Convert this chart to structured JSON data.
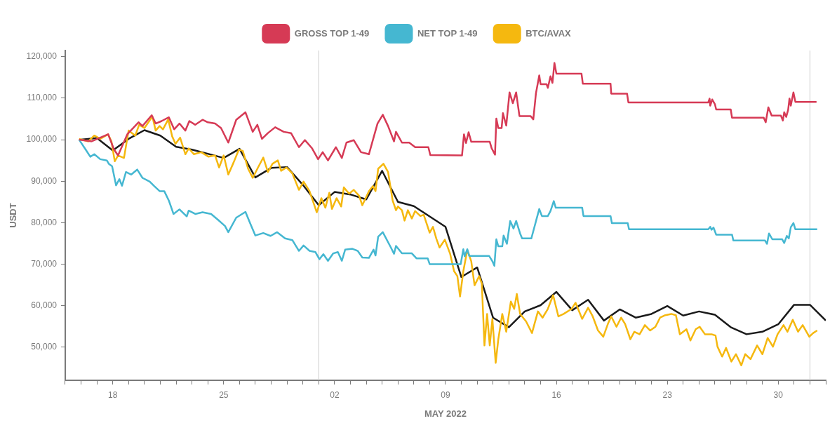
{
  "chart_data": {
    "type": "line",
    "xlabel": "MAY 2022",
    "ylabel": "USDT",
    "xlim": [
      "2022-04-15",
      "2022-06-02"
    ],
    "xticks": [
      {
        "value": "2022-04-15",
        "label": null
      },
      {
        "value": "2022-04-16",
        "label": null
      },
      {
        "value": "2022-04-17",
        "label": null
      },
      {
        "value": "2022-04-18",
        "label": "18"
      },
      {
        "value": "2022-04-19",
        "label": null
      },
      {
        "value": "2022-04-20",
        "label": null
      },
      {
        "value": "2022-04-21",
        "label": null
      },
      {
        "value": "2022-04-22",
        "label": null
      },
      {
        "value": "2022-04-23",
        "label": null
      },
      {
        "value": "2022-04-24",
        "label": null
      },
      {
        "value": "2022-04-25",
        "label": "25"
      },
      {
        "value": "2022-04-26",
        "label": null
      },
      {
        "value": "2022-04-27",
        "label": null
      },
      {
        "value": "2022-04-28",
        "label": null
      },
      {
        "value": "2022-04-29",
        "label": null
      },
      {
        "value": "2022-04-30",
        "label": null
      },
      {
        "value": "2022-05-01",
        "label": null
      },
      {
        "value": "2022-05-02",
        "label": "02"
      },
      {
        "value": "2022-05-03",
        "label": null
      },
      {
        "value": "2022-05-04",
        "label": null
      },
      {
        "value": "2022-05-05",
        "label": null
      },
      {
        "value": "2022-05-06",
        "label": null
      },
      {
        "value": "2022-05-07",
        "label": null
      },
      {
        "value": "2022-05-08",
        "label": null
      },
      {
        "value": "2022-05-09",
        "label": "09"
      },
      {
        "value": "2022-05-10",
        "label": null
      },
      {
        "value": "2022-05-11",
        "label": null
      },
      {
        "value": "2022-05-12",
        "label": null
      },
      {
        "value": "2022-05-13",
        "label": null
      },
      {
        "value": "2022-05-14",
        "label": null
      },
      {
        "value": "2022-05-15",
        "label": null
      },
      {
        "value": "2022-05-16",
        "label": "16"
      },
      {
        "value": "2022-05-17",
        "label": null
      },
      {
        "value": "2022-05-18",
        "label": null
      },
      {
        "value": "2022-05-19",
        "label": null
      },
      {
        "value": "2022-05-20",
        "label": null
      },
      {
        "value": "2022-05-21",
        "label": null
      },
      {
        "value": "2022-05-22",
        "label": null
      },
      {
        "value": "2022-05-23",
        "label": "23"
      },
      {
        "value": "2022-05-24",
        "label": null
      },
      {
        "value": "2022-05-25",
        "label": null
      },
      {
        "value": "2022-05-26",
        "label": null
      },
      {
        "value": "2022-05-27",
        "label": null
      },
      {
        "value": "2022-05-28",
        "label": null
      },
      {
        "value": "2022-05-29",
        "label": null
      },
      {
        "value": "2022-05-30",
        "label": "30"
      },
      {
        "value": "2022-05-31",
        "label": null
      },
      {
        "value": "2022-06-01",
        "label": null
      },
      {
        "value": "2022-06-02",
        "label": null
      }
    ],
    "ylim": [
      42000,
      121500
    ],
    "yticks": [
      {
        "value": 50000,
        "label": "50,000"
      },
      {
        "value": 60000,
        "label": "60,000"
      },
      {
        "value": 70000,
        "label": "70,000"
      },
      {
        "value": 80000,
        "label": "80,000"
      },
      {
        "value": 90000,
        "label": "90,000"
      },
      {
        "value": 100000,
        "label": "100,000"
      },
      {
        "value": 110000,
        "label": "110,000"
      },
      {
        "value": 120000,
        "label": "120,000"
      }
    ],
    "legend": "top",
    "marker": "none",
    "line_style": "solid",
    "ref_lines": [
      {
        "axis": "x",
        "value": "2022-05-01",
        "color": "#cccccc"
      },
      {
        "axis": "x",
        "value": "2022-06-01",
        "color": "#cccccc"
      }
    ],
    "series": [
      {
        "name": "GROSS TOP 1-49",
        "color": "#d63a55",
        "x": [
          "2022-04-15T21:00",
          "2022-04-16T16:00",
          "2022-04-17T17:00",
          "2022-04-18T02:00",
          "2022-04-18T08:00",
          "2022-04-18T22:00",
          "2022-04-19T15:00",
          "2022-04-19T21:00",
          "2022-04-20T11:00",
          "2022-04-20T17:00",
          "2022-04-21T02:00",
          "2022-04-21T13:00",
          "2022-04-21T21:00",
          "2022-04-22T05:00",
          "2022-04-22T14:00",
          "2022-04-22T20:00",
          "2022-04-23T05:00",
          "2022-04-23T16:00",
          "2022-04-24T00:00",
          "2022-04-24T11:00",
          "2022-04-24T20:00",
          "2022-04-25T07:00",
          "2022-04-25T19:00",
          "2022-04-26T09:00",
          "2022-04-26T20:00",
          "2022-04-27T03:00",
          "2022-04-27T10:00",
          "2022-04-27T19:00",
          "2022-04-28T06:00",
          "2022-04-28T19:00",
          "2022-04-29T06:00",
          "2022-04-29T18:00",
          "2022-04-30T03:00",
          "2022-04-30T14:00",
          "2022-04-30T23:00",
          "2022-05-01T06:00",
          "2022-05-01T14:00",
          "2022-05-02T02:00",
          "2022-05-02T11:00",
          "2022-05-02T18:00",
          "2022-05-03T05:00",
          "2022-05-03T16:00",
          "2022-05-04T04:00",
          "2022-05-04T10:00",
          "2022-05-04T17:00",
          "2022-05-05T01:00",
          "2022-05-05T09:00",
          "2022-05-05T18:00",
          "2022-05-05T21:00",
          "2022-05-06T06:00",
          "2022-05-06T17:00",
          "2022-05-07T02:00",
          "2022-05-07T22:00",
          "2022-05-08T01:00",
          "2022-05-10T01:00",
          "2022-05-10T04:00",
          "2022-05-10T07:00",
          "2022-05-10T11:00",
          "2022-05-10T15:00",
          "2022-05-11T19:00",
          "2022-05-11T22:00",
          "2022-05-12T03:00",
          "2022-05-12T05:00",
          "2022-05-12T08:00",
          "2022-05-12T13:00",
          "2022-05-12T15:00",
          "2022-05-12T20:00",
          "2022-05-13T01:00",
          "2022-05-13T06:00",
          "2022-05-13T11:00",
          "2022-05-13T16:00",
          "2022-05-14T09:00",
          "2022-05-14T13:00",
          "2022-05-14T17:00",
          "2022-05-14T22:00",
          "2022-05-15T00:00",
          "2022-05-15T09:00",
          "2022-05-15T11:00",
          "2022-05-15T15:00",
          "2022-05-15T18:00",
          "2022-05-15T21:00",
          "2022-05-16T00:00",
          "2022-05-17T14:00",
          "2022-05-17T16:00",
          "2022-05-19T10:00",
          "2022-05-19T11:00",
          "2022-05-20T11:00",
          "2022-05-20T13:00",
          "2022-05-25T14:00",
          "2022-05-25T16:00",
          "2022-05-25T17:00",
          "2022-05-25T20:00",
          "2022-05-26T00:00",
          "2022-05-26T02:00",
          "2022-05-27T00:00",
          "2022-05-27T02:00",
          "2022-05-29T02:00",
          "2022-05-29T05:00",
          "2022-05-29T09:00",
          "2022-05-29T14:00",
          "2022-05-30T04:00",
          "2022-05-30T07:00",
          "2022-05-30T09:00",
          "2022-05-30T12:00",
          "2022-05-30T15:00",
          "2022-05-30T17:00",
          "2022-05-30T19:00",
          "2022-05-30T23:00",
          "2022-05-31T02:00",
          "2022-06-01T10:00"
        ],
        "values": [
          100000,
          99600,
          101300,
          97600,
          96200,
          101300,
          104200,
          103300,
          105900,
          103900,
          104500,
          105400,
          102500,
          103900,
          102200,
          104500,
          103600,
          104800,
          104200,
          103900,
          102800,
          99300,
          104800,
          106600,
          101900,
          103600,
          100200,
          101600,
          103000,
          101900,
          101600,
          98200,
          99900,
          97900,
          95300,
          97000,
          95000,
          98200,
          95600,
          99300,
          99900,
          97000,
          96500,
          99900,
          103900,
          106000,
          103300,
          99600,
          101900,
          99300,
          99300,
          98200,
          98200,
          96300,
          96200,
          101300,
          99200,
          101800,
          99500,
          99500,
          97900,
          96400,
          105100,
          102800,
          102800,
          106400,
          103400,
          111400,
          108800,
          111400,
          105700,
          105700,
          104900,
          111200,
          115500,
          113400,
          113400,
          112500,
          115300,
          113700,
          118500,
          115900,
          115900,
          113500,
          113500,
          111100,
          111100,
          109000,
          109000,
          109900,
          108200,
          109700,
          108600,
          107300,
          107300,
          105300,
          105300,
          104200,
          107800,
          105800,
          105800,
          104600,
          106600,
          105500,
          107200,
          109900,
          108200,
          111400,
          109100,
          109100
        ]
      },
      {
        "name": "NET TOP 1-49",
        "color": "#45b7d1",
        "x": [
          "2022-04-15T21:00",
          "2022-04-16T07:00",
          "2022-04-16T14:00",
          "2022-04-16T20:00",
          "2022-04-17T05:00",
          "2022-04-17T15:00",
          "2022-04-17T18:00",
          "2022-04-17T23:00",
          "2022-04-18T05:00",
          "2022-04-18T10:00",
          "2022-04-18T14:00",
          "2022-04-18T20:00",
          "2022-04-19T04:00",
          "2022-04-19T13:00",
          "2022-04-19T21:00",
          "2022-04-20T08:00",
          "2022-04-20T15:00",
          "2022-04-20T23:00",
          "2022-04-21T06:00",
          "2022-04-21T13:00",
          "2022-04-21T20:00",
          "2022-04-22T05:00",
          "2022-04-22T16:00",
          "2022-04-22T19:00",
          "2022-04-23T05:00",
          "2022-04-23T16:00",
          "2022-04-24T05:00",
          "2022-04-24T16:00",
          "2022-04-25T02:00",
          "2022-04-25T07:00",
          "2022-04-25T19:00",
          "2022-04-26T09:00",
          "2022-04-26T17:00",
          "2022-04-27T00:00",
          "2022-04-27T12:00",
          "2022-04-27T23:00",
          "2022-04-28T09:00",
          "2022-04-28T21:00",
          "2022-04-29T08:00",
          "2022-04-29T18:00",
          "2022-04-30T01:00",
          "2022-04-30T10:00",
          "2022-04-30T19:00",
          "2022-05-01T01:00",
          "2022-05-01T07:00",
          "2022-05-01T14:00",
          "2022-05-01T22:00",
          "2022-05-02T05:00",
          "2022-05-02T11:00",
          "2022-05-02T16:00",
          "2022-05-03T03:00",
          "2022-05-03T11:00",
          "2022-05-03T18:00",
          "2022-05-04T04:00",
          "2022-05-04T11:00",
          "2022-05-04T14:00",
          "2022-05-04T18:00",
          "2022-05-05T01:00",
          "2022-05-05T13:00",
          "2022-05-05T18:00",
          "2022-05-05T21:00",
          "2022-05-06T06:00",
          "2022-05-06T21:00",
          "2022-05-07T04:00",
          "2022-05-07T21:00",
          "2022-05-08T00:00",
          "2022-05-09T23:00",
          "2022-05-10T03:00",
          "2022-05-10T05:00",
          "2022-05-10T09:00",
          "2022-05-10T12:00",
          "2022-05-11T18:00",
          "2022-05-11T23:00",
          "2022-05-12T02:00",
          "2022-05-12T05:00",
          "2022-05-12T08:00",
          "2022-05-12T14:00",
          "2022-05-12T16:00",
          "2022-05-12T21:00",
          "2022-05-13T02:00",
          "2022-05-13T07:00",
          "2022-05-13T11:00",
          "2022-05-13T17:00",
          "2022-05-13T20:00",
          "2022-05-14T10:00",
          "2022-05-14T22:00",
          "2022-05-15T02:00",
          "2022-05-15T11:00",
          "2022-05-15T15:00",
          "2022-05-15T20:00",
          "2022-05-15T23:00",
          "2022-05-17T15:00",
          "2022-05-17T17:00",
          "2022-05-19T10:00",
          "2022-05-19T12:00",
          "2022-05-20T12:00",
          "2022-05-20T14:00",
          "2022-05-25T14:00",
          "2022-05-25T17:00",
          "2022-05-25T19:00",
          "2022-05-25T22:00",
          "2022-05-26T02:00",
          "2022-05-27T02:00",
          "2022-05-27T04:00",
          "2022-05-29T04:00",
          "2022-05-29T07:00",
          "2022-05-29T10:00",
          "2022-05-29T15:00",
          "2022-05-30T06:00",
          "2022-05-30T09:00",
          "2022-05-30T13:00",
          "2022-05-30T16:00",
          "2022-05-30T19:00",
          "2022-05-30T23:00",
          "2022-05-31T02:00",
          "2022-06-01T11:00"
        ],
        "values": [
          100000,
          97600,
          95900,
          96500,
          95300,
          95000,
          94200,
          93600,
          89000,
          90500,
          88900,
          92200,
          91600,
          92800,
          90800,
          89900,
          88800,
          87600,
          87600,
          85300,
          82100,
          83200,
          81500,
          82900,
          82100,
          82500,
          82100,
          80600,
          79200,
          77700,
          81200,
          82600,
          79500,
          76900,
          77500,
          76800,
          77700,
          76200,
          75800,
          73200,
          74500,
          73200,
          72900,
          71200,
          72400,
          70800,
          72600,
          72900,
          70800,
          73500,
          73700,
          73200,
          71600,
          71500,
          73500,
          72100,
          76600,
          77700,
          74100,
          72500,
          74400,
          72600,
          72600,
          71400,
          71400,
          70000,
          70000,
          73600,
          71900,
          73600,
          72000,
          72000,
          70700,
          69600,
          76000,
          74300,
          74300,
          76900,
          74900,
          80400,
          78600,
          80400,
          77400,
          76200,
          76200,
          83300,
          81600,
          81600,
          82800,
          85200,
          83600,
          83600,
          81600,
          81600,
          79900,
          79900,
          78400,
          78400,
          79000,
          78300,
          78800,
          77100,
          77100,
          75700,
          75700,
          74900,
          77400,
          76000,
          76000,
          75100,
          76800,
          76200,
          78900,
          79900,
          78400,
          78400
        ]
      },
      {
        "name": "BTC/AVAX",
        "color": "#f5b80f",
        "x": [
          "2022-04-15T21:00",
          "2022-04-16T11:00",
          "2022-04-16T20:00",
          "2022-04-17T05:00",
          "2022-04-17T17:00",
          "2022-04-17T22:00",
          "2022-04-18T03:00",
          "2022-04-18T08:00",
          "2022-04-18T17:00",
          "2022-04-19T00:00",
          "2022-04-19T10:00",
          "2022-04-19T16:00",
          "2022-04-20T00:00",
          "2022-04-20T06:00",
          "2022-04-20T12:00",
          "2022-04-20T17:00",
          "2022-04-20T23:00",
          "2022-04-21T04:00",
          "2022-04-21T12:00",
          "2022-04-21T18:00",
          "2022-04-21T23:00",
          "2022-04-22T06:00",
          "2022-04-22T14:00",
          "2022-04-22T19:00",
          "2022-04-23T03:00",
          "2022-04-23T14:00",
          "2022-04-24T01:00",
          "2022-04-24T11:00",
          "2022-04-24T17:00",
          "2022-04-25T00:00",
          "2022-04-25T07:00",
          "2022-04-25T15:00",
          "2022-04-25T23:00",
          "2022-04-26T05:00",
          "2022-04-26T13:00",
          "2022-04-26T20:00",
          "2022-04-27T04:00",
          "2022-04-27T12:00",
          "2022-04-27T19:00",
          "2022-04-28T02:00",
          "2022-04-28T10:00",
          "2022-04-28T15:00",
          "2022-04-28T23:00",
          "2022-04-29T08:00",
          "2022-04-29T18:00",
          "2022-04-30T01:00",
          "2022-04-30T10:00",
          "2022-04-30T21:00",
          "2022-05-01T04:00",
          "2022-05-01T10:00",
          "2022-05-01T16:00",
          "2022-05-01T20:00",
          "2022-05-02T03:00",
          "2022-05-02T10:00",
          "2022-05-02T14:00",
          "2022-05-02T22:00",
          "2022-05-03T05:00",
          "2022-05-03T13:00",
          "2022-05-03T18:00",
          "2022-05-04T04:00",
          "2022-05-04T10:00",
          "2022-05-04T14:00",
          "2022-05-04T18:00",
          "2022-05-05T02:00",
          "2022-05-05T09:00",
          "2022-05-05T16:00",
          "2022-05-05T21:00",
          "2022-05-06T00:00",
          "2022-05-06T06:00",
          "2022-05-06T10:00",
          "2022-05-06T15:00",
          "2022-05-06T21:00",
          "2022-05-07T02:00",
          "2022-05-07T10:00",
          "2022-05-07T15:00",
          "2022-05-08T00:00",
          "2022-05-08T05:00",
          "2022-05-08T10:00",
          "2022-05-08T15:00",
          "2022-05-08T23:00",
          "2022-05-09T07:00",
          "2022-05-09T13:00",
          "2022-05-09T18:00",
          "2022-05-09T22:00",
          "2022-05-10T03:00",
          "2022-05-10T09:00",
          "2022-05-10T15:00",
          "2022-05-10T20:00",
          "2022-05-11T03:00",
          "2022-05-11T07:00",
          "2022-05-11T11:00",
          "2022-05-11T15:00",
          "2022-05-11T19:00",
          "2022-05-11T23:00",
          "2022-05-12T04:00",
          "2022-05-12T08:00",
          "2022-05-12T14:00",
          "2022-05-12T20:00",
          "2022-05-13T03:00",
          "2022-05-13T08:00",
          "2022-05-13T12:00",
          "2022-05-13T17:00",
          "2022-05-14T02:00",
          "2022-05-14T11:00",
          "2022-05-14T20:00",
          "2022-05-15T03:00",
          "2022-05-15T11:00",
          "2022-05-15T19:00",
          "2022-05-16T03:00",
          "2022-05-16T11:00",
          "2022-05-16T23:00",
          "2022-05-17T05:00",
          "2022-05-17T15:00",
          "2022-05-18T00:00",
          "2022-05-18T07:00",
          "2022-05-18T15:00",
          "2022-05-18T23:00",
          "2022-05-19T06:00",
          "2022-05-19T11:00",
          "2022-05-19T19:00",
          "2022-05-20T02:00",
          "2022-05-20T08:00",
          "2022-05-20T16:00",
          "2022-05-20T22:00",
          "2022-05-21T06:00",
          "2022-05-21T14:00",
          "2022-05-21T22:00",
          "2022-05-22T06:00",
          "2022-05-22T13:00",
          "2022-05-22T21:00",
          "2022-05-23T06:00",
          "2022-05-23T13:00",
          "2022-05-23T19:00",
          "2022-05-24T05:00",
          "2022-05-24T11:00",
          "2022-05-24T19:00",
          "2022-05-25T01:00",
          "2022-05-25T09:00",
          "2022-05-25T19:00",
          "2022-05-26T01:00",
          "2022-05-26T04:00",
          "2022-05-26T11:00",
          "2022-05-26T17:00",
          "2022-05-27T01:00",
          "2022-05-27T08:00",
          "2022-05-27T16:00",
          "2022-05-27T22:00",
          "2022-05-28T06:00",
          "2022-05-28T16:00",
          "2022-05-29T00:00",
          "2022-05-29T08:00",
          "2022-05-29T16:00",
          "2022-05-29T23:00",
          "2022-05-30T08:00",
          "2022-05-30T14:00",
          "2022-05-30T22:00",
          "2022-05-31T06:00",
          "2022-05-31T13:00",
          "2022-05-31T23:00",
          "2022-06-01T05:00",
          "2022-06-01T11:00"
        ],
        "values": [
          100200,
          99600,
          101000,
          100200,
          101300,
          99600,
          94800,
          96200,
          95600,
          102200,
          101000,
          103600,
          102800,
          104200,
          105600,
          102200,
          103300,
          102500,
          104900,
          100800,
          99000,
          100500,
          96500,
          97900,
          96500,
          97000,
          95900,
          96200,
          93300,
          96200,
          91600,
          94500,
          97600,
          97300,
          93000,
          90800,
          93300,
          95700,
          92200,
          94200,
          95000,
          92500,
          93300,
          91900,
          87900,
          89900,
          87600,
          82500,
          85900,
          83600,
          87200,
          83300,
          85900,
          83900,
          88500,
          87000,
          87900,
          86500,
          84200,
          87600,
          88800,
          87600,
          93000,
          94200,
          92200,
          85300,
          83000,
          83900,
          83000,
          80500,
          83000,
          81000,
          82800,
          81600,
          81900,
          77600,
          79000,
          76200,
          74000,
          75900,
          72500,
          68300,
          67100,
          62200,
          68300,
          73400,
          70700,
          64900,
          67100,
          65300,
          50400,
          58000,
          50400,
          56800,
          46200,
          51900,
          58000,
          53700,
          61000,
          59200,
          62800,
          58000,
          56200,
          53400,
          58600,
          57100,
          59200,
          62500,
          57400,
          58000,
          59200,
          60700,
          56800,
          59500,
          57400,
          54000,
          52500,
          55600,
          57400,
          54900,
          57100,
          55600,
          51900,
          53700,
          53100,
          55300,
          54000,
          54900,
          57100,
          57700,
          58000,
          57700,
          53100,
          54300,
          51600,
          54300,
          54900,
          53100,
          53100,
          52800,
          50100,
          47700,
          49800,
          46500,
          48300,
          45600,
          48300,
          47100,
          50400,
          48300,
          52200,
          50100,
          53100,
          55300,
          53700,
          56600,
          53700,
          55300,
          52500,
          53400,
          54000
        ]
      },
      {
        "color": "#1a1a1a",
        "x": [
          "2022-04-16",
          "2022-04-17",
          "2022-04-18",
          "2022-04-19",
          "2022-04-20",
          "2022-04-21",
          "2022-04-22",
          "2022-04-23",
          "2022-04-25",
          "2022-04-26",
          "2022-04-27",
          "2022-04-28",
          "2022-04-29",
          "2022-04-30",
          "2022-05-01",
          "2022-05-02",
          "2022-05-03",
          "2022-05-04",
          "2022-05-05",
          "2022-05-06",
          "2022-05-07",
          "2022-05-09",
          "2022-05-10",
          "2022-05-11",
          "2022-05-12",
          "2022-05-13",
          "2022-05-14",
          "2022-05-15",
          "2022-05-16",
          "2022-05-17",
          "2022-05-18",
          "2022-05-19",
          "2022-05-20",
          "2022-05-21",
          "2022-05-22",
          "2022-05-23",
          "2022-05-24",
          "2022-05-25",
          "2022-05-26",
          "2022-05-27",
          "2022-05-28",
          "2022-05-29",
          "2022-05-30",
          "2022-05-31",
          "2022-06-01",
          "2022-06-02"
        ],
        "values": [
          100000,
          100400,
          97400,
          100200,
          102300,
          101000,
          98300,
          97600,
          95600,
          97800,
          90900,
          93200,
          93400,
          89100,
          84200,
          87400,
          86800,
          85600,
          92500,
          85000,
          84000,
          79000,
          66900,
          69200,
          57100,
          54800,
          58600,
          60100,
          63300,
          58900,
          61400,
          56400,
          59100,
          57100,
          58000,
          59900,
          57600,
          58600,
          57800,
          54800,
          53100,
          53700,
          55500,
          60200,
          60200,
          56400
        ]
      }
    ]
  }
}
